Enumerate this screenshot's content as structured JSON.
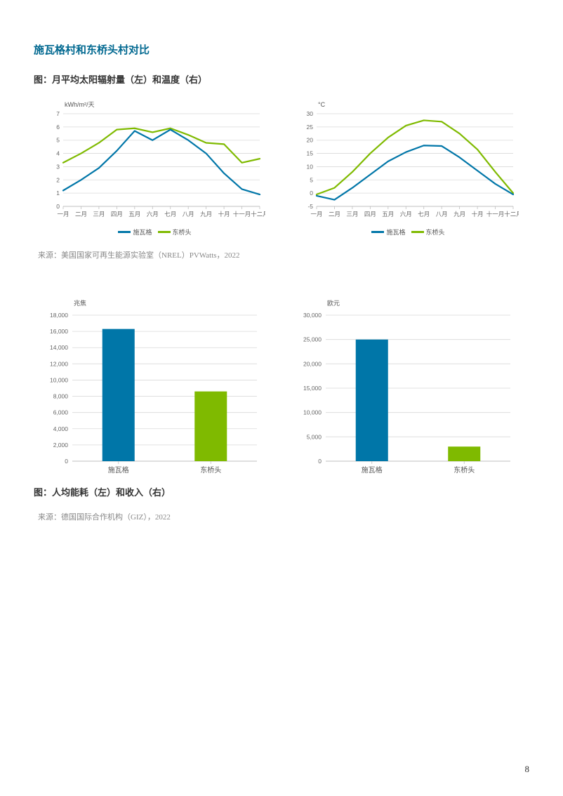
{
  "sectionTitle": "施瓦格村和东桥头村对比",
  "figure1Title": "图：月平均太阳辐射量（左）和温度（右）",
  "figure2Title": "图：人均能耗（左）和收入（右）",
  "source1": "来源：美国国家可再生能源实验室（NREL）PVWatts，2022",
  "source2": "来源：德国国际合作机构（GIZ），2022",
  "pageNumber": "8",
  "months": [
    "一月",
    "二月",
    "三月",
    "四月",
    "五月",
    "六月",
    "七月",
    "八月",
    "九月",
    "十月",
    "十一月",
    "十二月"
  ],
  "legendSeries": {
    "a": "施瓦格",
    "b": "东桥头"
  },
  "colors": {
    "seriesA": "#0076a8",
    "seriesB": "#7fba00",
    "grid": "#d9d9d9",
    "axis": "#bfbfbf",
    "text": "#666666",
    "bg": "#ffffff"
  },
  "chart_radiation": {
    "type": "line",
    "unit": "kWh/m²/天",
    "ylim": [
      0,
      7
    ],
    "ytick_step": 1,
    "seriesA": [
      1.2,
      2.0,
      2.9,
      4.2,
      5.7,
      5.0,
      5.8,
      5.0,
      4.0,
      2.5,
      1.3,
      0.9
    ],
    "seriesB": [
      3.3,
      4.0,
      4.8,
      5.8,
      5.9,
      5.6,
      5.9,
      5.4,
      4.8,
      4.7,
      3.3,
      3.6
    ],
    "line_width": 2.2
  },
  "chart_temperature": {
    "type": "line",
    "unit": "°C",
    "ylim": [
      -5,
      30
    ],
    "ytick_step": 5,
    "seriesA": [
      -1.0,
      -2.5,
      2.0,
      7.0,
      12.0,
      15.5,
      18.0,
      17.8,
      13.5,
      8.5,
      3.5,
      -0.5
    ],
    "seriesB": [
      -0.5,
      2.0,
      8.0,
      15.0,
      21.0,
      25.5,
      27.5,
      27.0,
      22.5,
      16.5,
      8.0,
      0.0
    ],
    "line_width": 2.2
  },
  "chart_energy": {
    "type": "bar",
    "unit": "兆焦",
    "ylim": [
      0,
      18000
    ],
    "ytick_step": 2000,
    "categories": [
      "施瓦格",
      "东桥头"
    ],
    "values": [
      16300,
      8600
    ],
    "bar_colors": [
      "#0076a8",
      "#7fba00"
    ],
    "bar_width": 0.35
  },
  "chart_income": {
    "type": "bar",
    "unit": "欧元",
    "ylim": [
      0,
      30000
    ],
    "ytick_step": 5000,
    "categories": [
      "施瓦格",
      "东桥头"
    ],
    "values": [
      25000,
      3000
    ],
    "bar_colors": [
      "#0076a8",
      "#7fba00"
    ],
    "bar_width": 0.35
  }
}
